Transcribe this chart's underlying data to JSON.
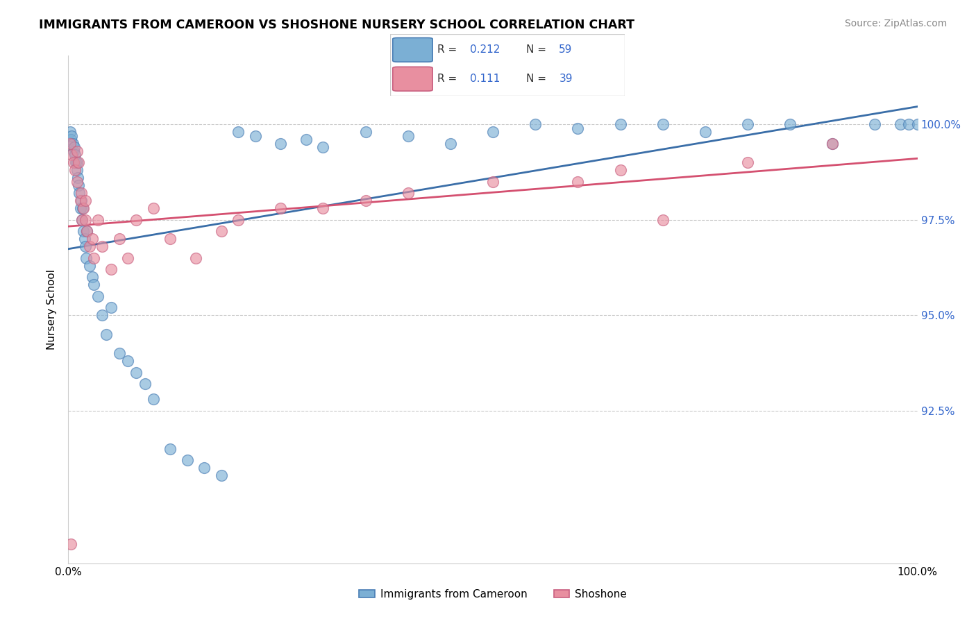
{
  "title": "IMMIGRANTS FROM CAMEROON VS SHOSHONE NURSERY SCHOOL CORRELATION CHART",
  "source": "Source: ZipAtlas.com",
  "ylabel": "Nursery School",
  "xlim": [
    0.0,
    100.0
  ],
  "ylim": [
    88.5,
    101.8
  ],
  "yticks": [
    92.5,
    95.0,
    97.5,
    100.0
  ],
  "ytick_labels": [
    "92.5%",
    "95.0%",
    "97.5%",
    "100.0%"
  ],
  "blue_color": "#7bafd4",
  "pink_color": "#e88fa0",
  "blue_edge_color": "#4a7eb5",
  "pink_edge_color": "#c96080",
  "blue_trend_color": "#3a6ea8",
  "pink_trend_color": "#d45070",
  "label_color": "#3366cc",
  "legend_R_blue": "0.212",
  "legend_N_blue": "59",
  "legend_R_pink": "0.111",
  "legend_N_pink": "39",
  "blue_x": [
    0.2,
    0.3,
    0.4,
    0.5,
    0.6,
    0.7,
    0.8,
    0.9,
    1.0,
    1.0,
    1.1,
    1.2,
    1.3,
    1.4,
    1.5,
    1.6,
    1.7,
    1.8,
    1.9,
    2.0,
    2.1,
    2.2,
    2.5,
    2.8,
    3.0,
    3.5,
    4.0,
    4.5,
    5.0,
    6.0,
    7.0,
    8.0,
    9.0,
    10.0,
    12.0,
    14.0,
    16.0,
    18.0,
    20.0,
    22.0,
    25.0,
    28.0,
    30.0,
    35.0,
    40.0,
    45.0,
    50.0,
    55.0,
    60.0,
    65.0,
    70.0,
    75.0,
    80.0,
    85.0,
    90.0,
    95.0,
    98.0,
    99.0,
    100.0
  ],
  "blue_y": [
    99.8,
    99.6,
    99.7,
    99.5,
    99.3,
    99.4,
    99.2,
    99.0,
    98.8,
    99.0,
    98.6,
    98.4,
    98.2,
    97.8,
    98.0,
    97.5,
    97.8,
    97.2,
    97.0,
    96.8,
    96.5,
    97.2,
    96.3,
    96.0,
    95.8,
    95.5,
    95.0,
    94.5,
    95.2,
    94.0,
    93.8,
    93.5,
    93.2,
    92.8,
    91.5,
    91.2,
    91.0,
    90.8,
    99.8,
    99.7,
    99.5,
    99.6,
    99.4,
    99.8,
    99.7,
    99.5,
    99.8,
    100.0,
    99.9,
    100.0,
    100.0,
    99.8,
    100.0,
    100.0,
    99.5,
    100.0,
    100.0,
    100.0,
    100.0
  ],
  "pink_x": [
    0.2,
    0.4,
    0.6,
    0.8,
    1.0,
    1.0,
    1.2,
    1.4,
    1.5,
    1.6,
    1.8,
    2.0,
    2.0,
    2.2,
    2.5,
    2.8,
    3.0,
    3.5,
    4.0,
    5.0,
    6.0,
    7.0,
    8.0,
    10.0,
    12.0,
    15.0,
    18.0,
    20.0,
    25.0,
    30.0,
    35.0,
    40.0,
    50.0,
    60.0,
    65.0,
    70.0,
    80.0,
    90.0,
    0.3
  ],
  "pink_y": [
    99.5,
    99.2,
    99.0,
    98.8,
    99.3,
    98.5,
    99.0,
    98.0,
    98.2,
    97.5,
    97.8,
    97.5,
    98.0,
    97.2,
    96.8,
    97.0,
    96.5,
    97.5,
    96.8,
    96.2,
    97.0,
    96.5,
    97.5,
    97.8,
    97.0,
    96.5,
    97.2,
    97.5,
    97.8,
    97.8,
    98.0,
    98.2,
    98.5,
    98.5,
    98.8,
    97.5,
    99.0,
    99.5,
    89.0
  ]
}
